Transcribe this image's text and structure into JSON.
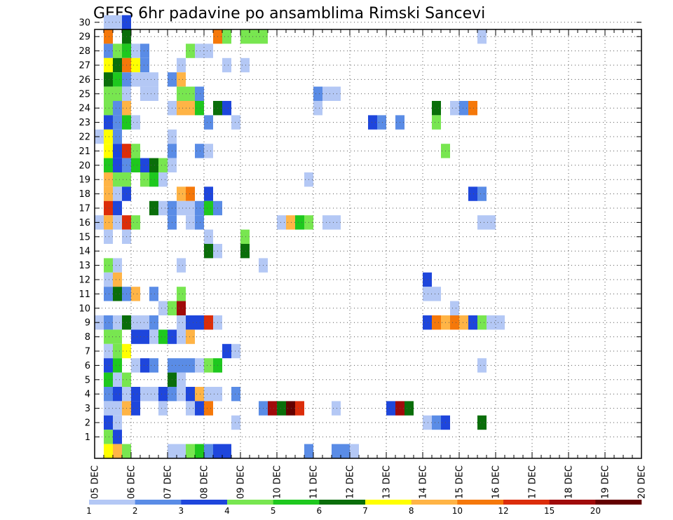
{
  "chart_data": {
    "type": "heatmap",
    "title": "GEFS 6hr padavine po ansamblima Rimski Sancevi",
    "x_tick_labels": [
      "05 DEC",
      "06 DEC",
      "07 DEC",
      "08 DEC",
      "09 DEC",
      "10 DEC",
      "11 DEC",
      "12 DEC",
      "13 DEC",
      "14 DEC",
      "15 DEC",
      "16 DEC",
      "17 DEC",
      "18 DEC",
      "19 DEC",
      "20 DEC"
    ],
    "y_tick_labels": [
      "1",
      "2",
      "3",
      "4",
      "5",
      "6",
      "7",
      "8",
      "9",
      "10",
      "11",
      "12",
      "13",
      "14",
      "15",
      "16",
      "17",
      "18",
      "19",
      "20",
      "21",
      "22",
      "23",
      "24",
      "25",
      "26",
      "27",
      "28",
      "29",
      "30"
    ],
    "x_steps_per_day": 4,
    "y_range": [
      0,
      30
    ],
    "grid": true,
    "colorbar": {
      "labels": [
        "1",
        "2",
        "3",
        "4",
        "5",
        "6",
        "7",
        "8",
        "10",
        "12",
        "15",
        "20"
      ],
      "colors": [
        "#b4c8f5",
        "#5a8ce6",
        "#1e46dc",
        "#78e650",
        "#1ec81e",
        "#0a6e0a",
        "#ffff00",
        "#ffb446",
        "#f5780a",
        "#dc2d0a",
        "#a00a0a",
        "#640000"
      ]
    },
    "cells": [
      [
        1,
        30,
        1
      ],
      [
        2,
        30,
        1
      ],
      [
        3,
        30,
        3
      ],
      [
        1,
        29,
        9
      ],
      [
        3,
        29,
        6
      ],
      [
        13,
        29,
        9
      ],
      [
        14,
        29,
        4
      ],
      [
        16,
        29,
        4
      ],
      [
        17,
        29,
        4
      ],
      [
        18,
        29,
        4
      ],
      [
        42,
        29,
        1
      ],
      [
        1,
        28,
        2
      ],
      [
        2,
        28,
        4
      ],
      [
        3,
        28,
        5
      ],
      [
        4,
        28,
        1
      ],
      [
        5,
        28,
        2
      ],
      [
        10,
        28,
        4
      ],
      [
        11,
        28,
        1
      ],
      [
        12,
        28,
        1
      ],
      [
        1,
        27,
        7
      ],
      [
        2,
        27,
        6
      ],
      [
        3,
        27,
        9
      ],
      [
        4,
        27,
        7
      ],
      [
        5,
        27,
        2
      ],
      [
        9,
        27,
        1
      ],
      [
        14,
        27,
        1
      ],
      [
        16,
        27,
        1
      ],
      [
        1,
        26,
        6
      ],
      [
        2,
        26,
        5
      ],
      [
        3,
        26,
        2
      ],
      [
        4,
        26,
        1
      ],
      [
        5,
        26,
        1
      ],
      [
        6,
        26,
        1
      ],
      [
        8,
        26,
        2
      ],
      [
        9,
        26,
        8
      ],
      [
        1,
        25,
        4
      ],
      [
        2,
        25,
        4
      ],
      [
        3,
        25,
        1
      ],
      [
        5,
        25,
        1
      ],
      [
        6,
        25,
        1
      ],
      [
        9,
        25,
        4
      ],
      [
        10,
        25,
        4
      ],
      [
        11,
        25,
        2
      ],
      [
        24,
        25,
        2
      ],
      [
        25,
        25,
        1
      ],
      [
        26,
        25,
        1
      ],
      [
        1,
        24,
        4
      ],
      [
        2,
        24,
        2
      ],
      [
        3,
        24,
        8
      ],
      [
        8,
        24,
        1
      ],
      [
        9,
        24,
        8
      ],
      [
        10,
        24,
        8
      ],
      [
        11,
        24,
        5
      ],
      [
        13,
        24,
        6
      ],
      [
        14,
        24,
        3
      ],
      [
        24,
        24,
        1
      ],
      [
        37,
        24,
        6
      ],
      [
        39,
        24,
        1
      ],
      [
        40,
        24,
        2
      ],
      [
        41,
        24,
        9
      ],
      [
        1,
        23,
        3
      ],
      [
        2,
        23,
        2
      ],
      [
        3,
        23,
        5
      ],
      [
        4,
        23,
        1
      ],
      [
        12,
        23,
        2
      ],
      [
        15,
        23,
        1
      ],
      [
        30,
        23,
        3
      ],
      [
        31,
        23,
        2
      ],
      [
        33,
        23,
        2
      ],
      [
        37,
        23,
        4
      ],
      [
        0,
        22,
        1
      ],
      [
        1,
        22,
        7
      ],
      [
        2,
        22,
        2
      ],
      [
        8,
        22,
        1
      ],
      [
        1,
        21,
        7
      ],
      [
        2,
        21,
        3
      ],
      [
        3,
        21,
        10
      ],
      [
        4,
        21,
        4
      ],
      [
        8,
        21,
        2
      ],
      [
        11,
        21,
        2
      ],
      [
        12,
        21,
        1
      ],
      [
        38,
        21,
        4
      ],
      [
        1,
        20,
        5
      ],
      [
        2,
        20,
        3
      ],
      [
        3,
        20,
        2
      ],
      [
        4,
        20,
        5
      ],
      [
        5,
        20,
        3
      ],
      [
        6,
        20,
        6
      ],
      [
        7,
        20,
        4
      ],
      [
        8,
        20,
        1
      ],
      [
        1,
        19,
        8
      ],
      [
        2,
        19,
        4
      ],
      [
        3,
        19,
        4
      ],
      [
        5,
        19,
        4
      ],
      [
        6,
        19,
        5
      ],
      [
        7,
        19,
        1
      ],
      [
        23,
        19,
        1
      ],
      [
        1,
        18,
        8
      ],
      [
        2,
        18,
        1
      ],
      [
        3,
        18,
        3
      ],
      [
        9,
        18,
        8
      ],
      [
        10,
        18,
        9
      ],
      [
        12,
        18,
        3
      ],
      [
        41,
        18,
        3
      ],
      [
        42,
        18,
        2
      ],
      [
        1,
        17,
        10
      ],
      [
        2,
        17,
        3
      ],
      [
        6,
        17,
        6
      ],
      [
        7,
        17,
        1
      ],
      [
        8,
        17,
        2
      ],
      [
        9,
        17,
        1
      ],
      [
        10,
        17,
        1
      ],
      [
        11,
        17,
        2
      ],
      [
        12,
        17,
        5
      ],
      [
        13,
        17,
        2
      ],
      [
        0,
        16,
        1
      ],
      [
        1,
        16,
        8
      ],
      [
        2,
        16,
        1
      ],
      [
        3,
        16,
        10
      ],
      [
        4,
        16,
        4
      ],
      [
        8,
        16,
        2
      ],
      [
        10,
        16,
        1
      ],
      [
        11,
        16,
        2
      ],
      [
        20,
        16,
        1
      ],
      [
        21,
        16,
        8
      ],
      [
        22,
        16,
        5
      ],
      [
        23,
        16,
        4
      ],
      [
        25,
        16,
        1
      ],
      [
        26,
        16,
        1
      ],
      [
        42,
        16,
        1
      ],
      [
        43,
        16,
        1
      ],
      [
        1,
        15,
        1
      ],
      [
        3,
        15,
        1
      ],
      [
        12,
        15,
        1
      ],
      [
        16,
        15,
        4
      ],
      [
        12,
        14,
        6
      ],
      [
        13,
        14,
        1
      ],
      [
        16,
        14,
        6
      ],
      [
        1,
        13,
        4
      ],
      [
        2,
        13,
        1
      ],
      [
        9,
        13,
        1
      ],
      [
        18,
        13,
        1
      ],
      [
        1,
        12,
        1
      ],
      [
        2,
        12,
        8
      ],
      [
        36,
        12,
        3
      ],
      [
        1,
        11,
        2
      ],
      [
        2,
        11,
        6
      ],
      [
        3,
        11,
        2
      ],
      [
        4,
        11,
        8
      ],
      [
        6,
        11,
        2
      ],
      [
        9,
        11,
        4
      ],
      [
        36,
        11,
        1
      ],
      [
        37,
        11,
        1
      ],
      [
        7,
        10,
        1
      ],
      [
        8,
        10,
        4
      ],
      [
        9,
        10,
        11
      ],
      [
        39,
        10,
        1
      ],
      [
        0,
        9,
        1
      ],
      [
        1,
        9,
        2
      ],
      [
        2,
        9,
        1
      ],
      [
        3,
        9,
        6
      ],
      [
        4,
        9,
        1
      ],
      [
        5,
        9,
        1
      ],
      [
        6,
        9,
        2
      ],
      [
        9,
        9,
        1
      ],
      [
        10,
        9,
        3
      ],
      [
        11,
        9,
        3
      ],
      [
        12,
        9,
        10
      ],
      [
        13,
        9,
        1
      ],
      [
        36,
        9,
        3
      ],
      [
        37,
        9,
        9
      ],
      [
        38,
        9,
        8
      ],
      [
        39,
        9,
        9
      ],
      [
        40,
        9,
        8
      ],
      [
        41,
        9,
        3
      ],
      [
        42,
        9,
        4
      ],
      [
        43,
        9,
        1
      ],
      [
        44,
        9,
        1
      ],
      [
        1,
        8,
        4
      ],
      [
        2,
        8,
        4
      ],
      [
        4,
        8,
        3
      ],
      [
        5,
        8,
        3
      ],
      [
        6,
        8,
        1
      ],
      [
        7,
        8,
        5
      ],
      [
        8,
        8,
        3
      ],
      [
        9,
        8,
        1
      ],
      [
        10,
        8,
        8
      ],
      [
        1,
        7,
        1
      ],
      [
        2,
        7,
        4
      ],
      [
        3,
        7,
        7
      ],
      [
        14,
        7,
        3
      ],
      [
        15,
        7,
        1
      ],
      [
        1,
        6,
        3
      ],
      [
        2,
        6,
        5
      ],
      [
        4,
        6,
        1
      ],
      [
        5,
        6,
        3
      ],
      [
        6,
        6,
        2
      ],
      [
        8,
        6,
        2
      ],
      [
        9,
        6,
        2
      ],
      [
        10,
        6,
        2
      ],
      [
        11,
        6,
        1
      ],
      [
        12,
        6,
        4
      ],
      [
        13,
        6,
        5
      ],
      [
        42,
        6,
        1
      ],
      [
        1,
        5,
        5
      ],
      [
        2,
        5,
        1
      ],
      [
        3,
        5,
        4
      ],
      [
        8,
        5,
        6
      ],
      [
        9,
        5,
        1
      ],
      [
        1,
        4,
        2
      ],
      [
        2,
        4,
        3
      ],
      [
        3,
        4,
        1
      ],
      [
        4,
        4,
        3
      ],
      [
        5,
        4,
        1
      ],
      [
        6,
        4,
        1
      ],
      [
        7,
        4,
        3
      ],
      [
        8,
        4,
        2
      ],
      [
        9,
        4,
        1
      ],
      [
        10,
        4,
        3
      ],
      [
        11,
        4,
        8
      ],
      [
        12,
        4,
        1
      ],
      [
        13,
        4,
        1
      ],
      [
        15,
        4,
        2
      ],
      [
        1,
        3,
        1
      ],
      [
        2,
        3,
        1
      ],
      [
        3,
        3,
        8
      ],
      [
        4,
        3,
        3
      ],
      [
        7,
        3,
        1
      ],
      [
        10,
        3,
        1
      ],
      [
        11,
        3,
        3
      ],
      [
        12,
        3,
        9
      ],
      [
        18,
        3,
        2
      ],
      [
        19,
        3,
        11
      ],
      [
        20,
        3,
        6
      ],
      [
        21,
        3,
        12
      ],
      [
        22,
        3,
        10
      ],
      [
        26,
        3,
        1
      ],
      [
        32,
        3,
        3
      ],
      [
        33,
        3,
        11
      ],
      [
        34,
        3,
        6
      ],
      [
        1,
        2,
        3
      ],
      [
        2,
        2,
        1
      ],
      [
        15,
        2,
        1
      ],
      [
        36,
        2,
        1
      ],
      [
        37,
        2,
        2
      ],
      [
        38,
        2,
        3
      ],
      [
        42,
        2,
        6
      ],
      [
        1,
        1,
        4
      ],
      [
        2,
        1,
        3
      ],
      [
        1,
        0,
        7
      ],
      [
        2,
        0,
        8
      ],
      [
        3,
        0,
        4
      ],
      [
        8,
        0,
        1
      ],
      [
        9,
        0,
        1
      ],
      [
        10,
        0,
        4
      ],
      [
        11,
        0,
        5
      ],
      [
        12,
        0,
        2
      ],
      [
        13,
        0,
        3
      ],
      [
        14,
        0,
        3
      ],
      [
        23,
        0,
        2
      ],
      [
        26,
        0,
        2
      ],
      [
        27,
        0,
        2
      ],
      [
        28,
        0,
        1
      ]
    ]
  }
}
